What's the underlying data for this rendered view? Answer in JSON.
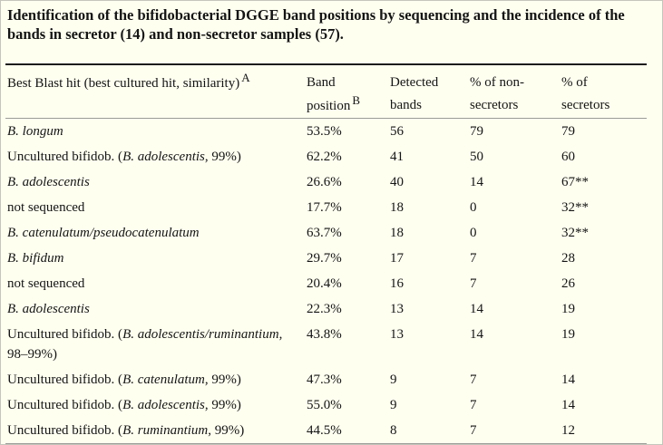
{
  "caption": "Identification of the bifidobacterial DGGE band positions by sequencing and the incidence of the bands in secretor (14) and non-secretor samples (57).",
  "colors": {
    "background": "#FFFFF0",
    "rule_dark": "#1C1C1C",
    "rule_light": "#9A9A96",
    "text": "#141414"
  },
  "table": {
    "header": {
      "col1": {
        "label": "Best Blast hit (best cultured hit, similarity)",
        "footnote": "A"
      },
      "col2": {
        "label": "Band position",
        "footnote": "B"
      },
      "col3": {
        "label": "Detected bands"
      },
      "col4": {
        "label": "% of non-secretors"
      },
      "col5": {
        "label": "% of secretors"
      }
    },
    "rows": [
      {
        "name_prefix": "",
        "name_italic": "B. longum",
        "name_suffix": "",
        "band_position": "53.5%",
        "detected_bands": "56",
        "pct_non_secretors": "79",
        "pct_secretors": "79"
      },
      {
        "name_prefix": "Uncultured bifidob. (",
        "name_italic": "B. adolescentis",
        "name_suffix": ", 99%)",
        "band_position": "62.2%",
        "detected_bands": "41",
        "pct_non_secretors": "50",
        "pct_secretors": "60"
      },
      {
        "name_prefix": "",
        "name_italic": "B. adolescentis",
        "name_suffix": "",
        "band_position": "26.6%",
        "detected_bands": "40",
        "pct_non_secretors": "14",
        "pct_secretors": "67**"
      },
      {
        "name_prefix": "not sequenced",
        "name_italic": "",
        "name_suffix": "",
        "band_position": "17.7%",
        "detected_bands": "18",
        "pct_non_secretors": "0",
        "pct_secretors": "32**"
      },
      {
        "name_prefix": "",
        "name_italic": "B. catenulatum/pseudocatenulatum",
        "name_suffix": "",
        "band_position": "63.7%",
        "detected_bands": "18",
        "pct_non_secretors": "0",
        "pct_secretors": "32**"
      },
      {
        "name_prefix": "",
        "name_italic": "B. bifidum",
        "name_suffix": "",
        "band_position": "29.7%",
        "detected_bands": "17",
        "pct_non_secretors": "7",
        "pct_secretors": "28"
      },
      {
        "name_prefix": "not sequenced",
        "name_italic": "",
        "name_suffix": "",
        "band_position": "20.4%",
        "detected_bands": "16",
        "pct_non_secretors": "7",
        "pct_secretors": "26"
      },
      {
        "name_prefix": "",
        "name_italic": "B. adolescentis",
        "name_suffix": "",
        "band_position": "22.3%",
        "detected_bands": "13",
        "pct_non_secretors": "14",
        "pct_secretors": "19"
      },
      {
        "name_prefix": "Uncultured bifidob. (",
        "name_italic": "B. adolescentis/ruminantium",
        "name_suffix": ", 98–99%)",
        "band_position": "43.8%",
        "detected_bands": "13",
        "pct_non_secretors": "14",
        "pct_secretors": "19"
      },
      {
        "name_prefix": "Uncultured bifidob. (",
        "name_italic": "B. catenulatum",
        "name_suffix": ", 99%)",
        "band_position": "47.3%",
        "detected_bands": "9",
        "pct_non_secretors": "7",
        "pct_secretors": "14"
      },
      {
        "name_prefix": "Uncultured bifidob. (",
        "name_italic": "B. adolescentis",
        "name_suffix": ", 99%)",
        "band_position": "55.0%",
        "detected_bands": "9",
        "pct_non_secretors": "7",
        "pct_secretors": "14"
      },
      {
        "name_prefix": "Uncultured bifidob. (",
        "name_italic": "B. ruminantium",
        "name_suffix": ", 99%)",
        "band_position": "44.5%",
        "detected_bands": "8",
        "pct_non_secretors": "7",
        "pct_secretors": "12"
      }
    ]
  }
}
